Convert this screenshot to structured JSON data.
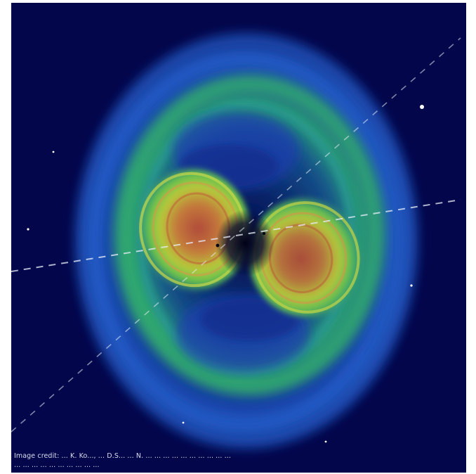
{
  "image": {
    "subject": "gravitational-wave-simulation",
    "colors": {
      "background": "#03064a",
      "outer_shell": "#1f5fd8",
      "middle_shell": "#2fb36a",
      "inner_lobe": "#b8c93a",
      "core": "#c0553a"
    }
  },
  "credit": {
    "line1": "Image credit: ... K. Ko..., ... D.S... ... N. ... ... ... ... ... ... ... ... ... ...",
    "line2": "... ... ... ... ... ... ... ... ... ..."
  }
}
